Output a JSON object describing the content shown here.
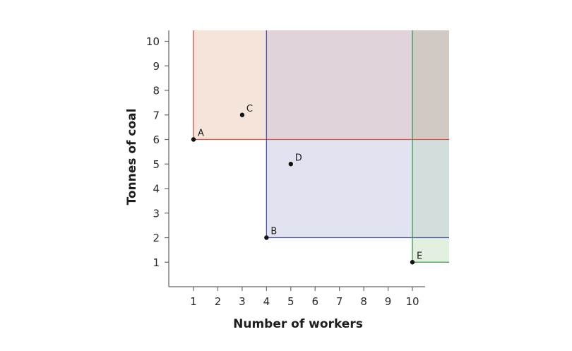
{
  "chart_data": {
    "type": "scatter",
    "title": "",
    "xlabel": "Number of workers",
    "ylabel": "Tonnes of coal",
    "xlim": [
      0,
      10.6
    ],
    "ylim": [
      0,
      10.5
    ],
    "x_ticks": [
      "1",
      "2",
      "3",
      "4",
      "5",
      "6",
      "7",
      "8",
      "9",
      "10"
    ],
    "y_ticks": [
      "1",
      "2",
      "3",
      "4",
      "5",
      "6",
      "7",
      "8",
      "9",
      "10"
    ],
    "grid": false,
    "points": [
      {
        "label": "A",
        "x": 1,
        "y": 6
      },
      {
        "label": "B",
        "x": 4,
        "y": 2
      },
      {
        "label": "C",
        "x": 3,
        "y": 7
      },
      {
        "label": "D",
        "x": 5,
        "y": 5
      },
      {
        "label": "E",
        "x": 10,
        "y": 1
      }
    ],
    "dominance_regions": [
      {
        "from_point": "A",
        "x_min": 1,
        "y_min": 6,
        "line_color": "#e0503a",
        "fill_color": "#f5e4d9"
      },
      {
        "from_point": "B",
        "x_min": 4,
        "y_min": 2,
        "line_color": "#4a55b5",
        "fill_color": "#e1e3f1"
      },
      {
        "from_point": "E",
        "x_min": 10,
        "y_min": 1,
        "line_color": "#3d9a4a",
        "fill_color": "#e3f0df"
      }
    ],
    "overlap_colors": {
      "A_and_B": "#e0d3d9",
      "A_B_E": "#d0c9c4",
      "B_and_E": "#d3dedc"
    }
  }
}
